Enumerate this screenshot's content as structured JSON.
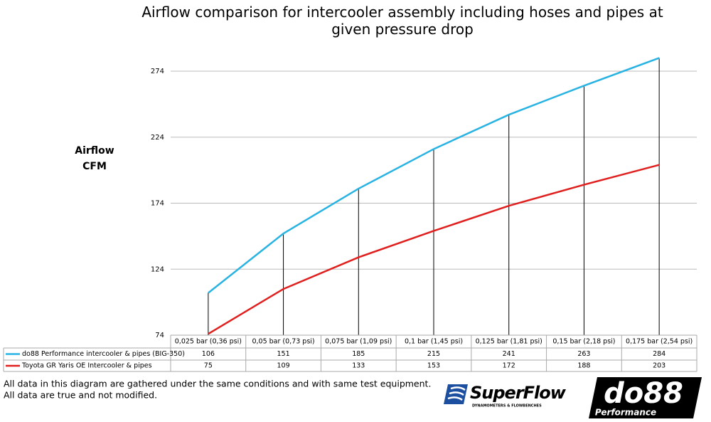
{
  "chart_data": {
    "type": "line",
    "title": "Airflow comparison for intercooler assembly including hoses and pipes at given pressure drop",
    "y_label": [
      "Airflow",
      "CFM"
    ],
    "categories": [
      "0,025 bar (0,36 psi)",
      "0,05 bar (0,73 psi)",
      "0,075 bar (1,09 psi)",
      "0,1 bar (1,45 psi)",
      "0,125 bar (1,81 psi)",
      "0,15 bar (2,18 psi)",
      "0,175 bar (2,54 psi)"
    ],
    "series": [
      {
        "name": "do88 Performance intercooler & pipes (BIG-350)",
        "color": "#29b3e3",
        "values": [
          106,
          151,
          185,
          215,
          241,
          263,
          284
        ]
      },
      {
        "name": "Toyota GR Yaris OE Intercooler & pipes",
        "color": "#e0201e",
        "values": [
          75,
          109,
          133,
          153,
          172,
          188,
          203
        ]
      }
    ],
    "ylim": [
      74,
      294
    ],
    "yticks": [
      74,
      124,
      174,
      224,
      274
    ],
    "grid": true,
    "drop_lines": true,
    "notes": [
      "All data in this diagram are gathered under the same conditions and with same test equipment.",
      "All data are true and not modified."
    ],
    "logos": {
      "superflow": "SuperFlow",
      "superflow_tagline": "DYNAMOMETERS & FLOWBENCHES",
      "do88": "do88",
      "do88_tagline": "Performance"
    }
  }
}
